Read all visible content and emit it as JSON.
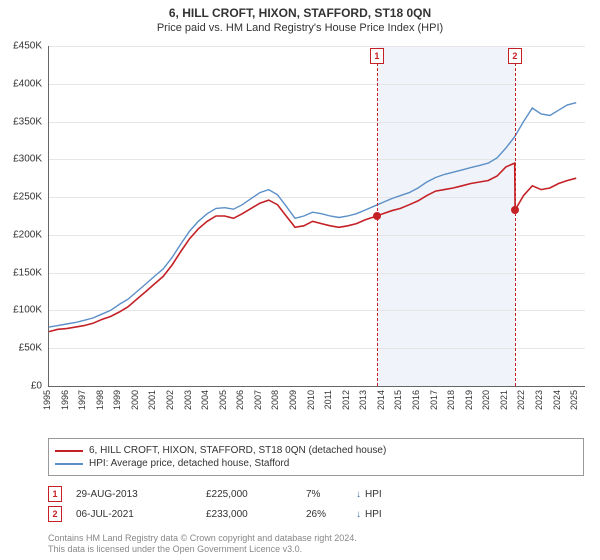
{
  "title": "6, HILL CROFT, HIXON, STAFFORD, ST18 0QN",
  "subtitle": "Price paid vs. HM Land Registry's House Price Index (HPI)",
  "chart": {
    "type": "line",
    "xlim": [
      1995,
      2025.5
    ],
    "ylim": [
      0,
      450000
    ],
    "ytick_step": 50000,
    "y_prefix": "£",
    "y_suffix": "K",
    "x_ticks": [
      1995,
      1996,
      1997,
      1998,
      1999,
      2000,
      2001,
      2002,
      2003,
      2004,
      2005,
      2006,
      2007,
      2008,
      2009,
      2010,
      2011,
      2012,
      2013,
      2014,
      2015,
      2016,
      2017,
      2018,
      2019,
      2020,
      2021,
      2022,
      2023,
      2024,
      2025
    ],
    "grid_color": "#e6e6e6",
    "background_color": "#ffffff",
    "shaded_regions": [
      {
        "from": 2013.66,
        "to": 2021.51,
        "color": "#eef3fa"
      }
    ],
    "series": [
      {
        "name": "price_paid",
        "label": "6, HILL CROFT, HIXON, STAFFORD, ST18 0QN (detached house)",
        "color": "#c42127",
        "line_width": 1.6,
        "data": [
          [
            1995,
            72000
          ],
          [
            1995.5,
            75000
          ],
          [
            1996,
            76000
          ],
          [
            1996.5,
            78000
          ],
          [
            1997,
            80000
          ],
          [
            1997.5,
            83000
          ],
          [
            1998,
            88000
          ],
          [
            1998.5,
            92000
          ],
          [
            1999,
            98000
          ],
          [
            1999.5,
            105000
          ],
          [
            2000,
            115000
          ],
          [
            2000.5,
            125000
          ],
          [
            2001,
            135000
          ],
          [
            2001.5,
            145000
          ],
          [
            2002,
            160000
          ],
          [
            2002.5,
            178000
          ],
          [
            2003,
            195000
          ],
          [
            2003.5,
            208000
          ],
          [
            2004,
            218000
          ],
          [
            2004.5,
            225000
          ],
          [
            2005,
            225000
          ],
          [
            2005.5,
            222000
          ],
          [
            2006,
            228000
          ],
          [
            2006.5,
            235000
          ],
          [
            2007,
            242000
          ],
          [
            2007.5,
            246000
          ],
          [
            2008,
            240000
          ],
          [
            2008.5,
            225000
          ],
          [
            2009,
            210000
          ],
          [
            2009.5,
            212000
          ],
          [
            2010,
            218000
          ],
          [
            2010.5,
            215000
          ],
          [
            2011,
            212000
          ],
          [
            2011.5,
            210000
          ],
          [
            2012,
            212000
          ],
          [
            2012.5,
            215000
          ],
          [
            2013,
            220000
          ],
          [
            2013.66,
            225000
          ],
          [
            2014,
            228000
          ],
          [
            2014.5,
            232000
          ],
          [
            2015,
            235000
          ],
          [
            2015.5,
            240000
          ],
          [
            2016,
            245000
          ],
          [
            2016.5,
            252000
          ],
          [
            2017,
            258000
          ],
          [
            2017.5,
            260000
          ],
          [
            2018,
            262000
          ],
          [
            2018.5,
            265000
          ],
          [
            2019,
            268000
          ],
          [
            2019.5,
            270000
          ],
          [
            2020,
            272000
          ],
          [
            2020.5,
            278000
          ],
          [
            2021,
            290000
          ],
          [
            2021.5,
            295000
          ],
          [
            2021.52,
            233000
          ],
          [
            2022,
            252000
          ],
          [
            2022.5,
            265000
          ],
          [
            2023,
            260000
          ],
          [
            2023.5,
            262000
          ],
          [
            2024,
            268000
          ],
          [
            2024.5,
            272000
          ],
          [
            2025,
            275000
          ]
        ]
      },
      {
        "name": "hpi",
        "label": "HPI: Average price, detached house, Stafford",
        "color": "#5b8fc7",
        "line_width": 1.4,
        "data": [
          [
            1995,
            78000
          ],
          [
            1995.5,
            80000
          ],
          [
            1996,
            82000
          ],
          [
            1996.5,
            84000
          ],
          [
            1997,
            87000
          ],
          [
            1997.5,
            90000
          ],
          [
            1998,
            95000
          ],
          [
            1998.5,
            100000
          ],
          [
            1999,
            108000
          ],
          [
            1999.5,
            115000
          ],
          [
            2000,
            125000
          ],
          [
            2000.5,
            135000
          ],
          [
            2001,
            145000
          ],
          [
            2001.5,
            155000
          ],
          [
            2002,
            170000
          ],
          [
            2002.5,
            188000
          ],
          [
            2003,
            205000
          ],
          [
            2003.5,
            218000
          ],
          [
            2004,
            228000
          ],
          [
            2004.5,
            235000
          ],
          [
            2005,
            236000
          ],
          [
            2005.5,
            234000
          ],
          [
            2006,
            240000
          ],
          [
            2006.5,
            248000
          ],
          [
            2007,
            256000
          ],
          [
            2007.5,
            260000
          ],
          [
            2008,
            253000
          ],
          [
            2008.5,
            238000
          ],
          [
            2009,
            222000
          ],
          [
            2009.5,
            225000
          ],
          [
            2010,
            230000
          ],
          [
            2010.5,
            228000
          ],
          [
            2011,
            225000
          ],
          [
            2011.5,
            223000
          ],
          [
            2012,
            225000
          ],
          [
            2012.5,
            228000
          ],
          [
            2013,
            233000
          ],
          [
            2013.5,
            238000
          ],
          [
            2014,
            243000
          ],
          [
            2014.5,
            248000
          ],
          [
            2015,
            252000
          ],
          [
            2015.5,
            256000
          ],
          [
            2016,
            262000
          ],
          [
            2016.5,
            270000
          ],
          [
            2017,
            276000
          ],
          [
            2017.5,
            280000
          ],
          [
            2018,
            283000
          ],
          [
            2018.5,
            286000
          ],
          [
            2019,
            289000
          ],
          [
            2019.5,
            292000
          ],
          [
            2020,
            295000
          ],
          [
            2020.5,
            302000
          ],
          [
            2021,
            315000
          ],
          [
            2021.5,
            330000
          ],
          [
            2022,
            350000
          ],
          [
            2022.5,
            368000
          ],
          [
            2023,
            360000
          ],
          [
            2023.5,
            358000
          ],
          [
            2024,
            365000
          ],
          [
            2024.5,
            372000
          ],
          [
            2025,
            375000
          ]
        ]
      }
    ],
    "markers": [
      {
        "id": "1",
        "x": 2013.66,
        "y": 225000
      },
      {
        "id": "2",
        "x": 2021.51,
        "y": 233000
      }
    ]
  },
  "legend": {
    "items": [
      {
        "color": "#c42127",
        "label_path": "chart.series.0.label"
      },
      {
        "color": "#5b8fc7",
        "label_path": "chart.series.1.label"
      }
    ]
  },
  "sales": [
    {
      "id": "1",
      "date": "29-AUG-2013",
      "price": "£225,000",
      "pct": "7%",
      "arrow": "↓",
      "vs": "HPI"
    },
    {
      "id": "2",
      "date": "06-JUL-2021",
      "price": "£233,000",
      "pct": "26%",
      "arrow": "↓",
      "vs": "HPI"
    }
  ],
  "footer": {
    "line1": "Contains HM Land Registry data © Crown copyright and database right 2024.",
    "line2": "This data is licensed under the Open Government Licence v3.0."
  }
}
